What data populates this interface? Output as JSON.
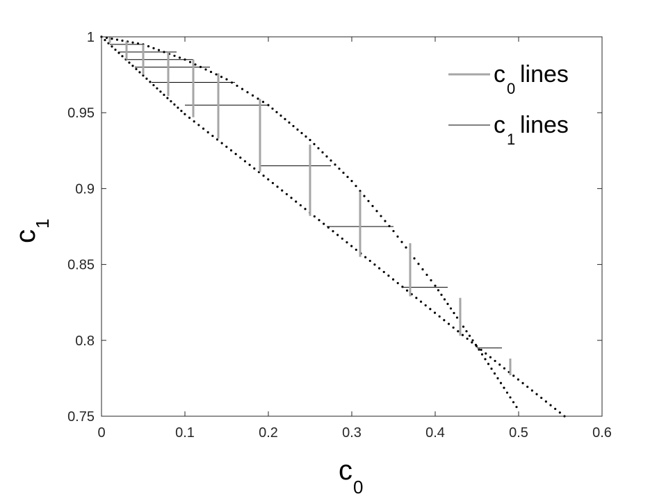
{
  "chart_data": {
    "type": "scatter",
    "xlabel": "c",
    "xlabel_sub": "0",
    "ylabel": "c",
    "ylabel_sub": "1",
    "xlim": [
      0,
      0.6
    ],
    "ylim": [
      0.75,
      1
    ],
    "x_ticks": [
      "0",
      "0.1",
      "0.2",
      "0.3",
      "0.4",
      "0.5",
      "0.6"
    ],
    "y_ticks": [
      "0.75",
      "0.8",
      "0.85",
      "0.9",
      "0.95",
      "1"
    ],
    "grid": false,
    "legend_position": "top-right",
    "legend": [
      {
        "prefix": "c",
        "sub": "0",
        "suffix": " lines",
        "color": "#a6a6a6"
      },
      {
        "prefix": "c",
        "sub": "1",
        "suffix": " lines",
        "color": "#000000"
      }
    ],
    "upper_boundary": {
      "x": [
        0,
        0.05,
        0.1,
        0.15,
        0.2,
        0.25,
        0.3,
        0.35,
        0.4,
        0.45,
        0.5
      ],
      "y": [
        1,
        0.995,
        0.985,
        0.972,
        0.955,
        0.932,
        0.905,
        0.872,
        0.836,
        0.796,
        0.754
      ],
      "color": "#000000"
    },
    "lower_boundary": {
      "x": [
        0,
        0.1,
        0.2,
        0.3,
        0.4,
        0.5,
        0.555
      ],
      "y": [
        1,
        0.949,
        0.906,
        0.862,
        0.818,
        0.774,
        0.75
      ],
      "color": "#000000"
    },
    "c0_lines": [
      {
        "x": 0.01,
        "y1": 0.996,
        "y2": 1.0
      },
      {
        "x": 0.03,
        "y1": 0.985,
        "y2": 0.997
      },
      {
        "x": 0.05,
        "y1": 0.975,
        "y2": 0.995
      },
      {
        "x": 0.08,
        "y1": 0.961,
        "y2": 0.99
      },
      {
        "x": 0.11,
        "y1": 0.947,
        "y2": 0.985
      },
      {
        "x": 0.14,
        "y1": 0.933,
        "y2": 0.976
      },
      {
        "x": 0.19,
        "y1": 0.911,
        "y2": 0.959
      },
      {
        "x": 0.25,
        "y1": 0.882,
        "y2": 0.929
      },
      {
        "x": 0.31,
        "y1": 0.855,
        "y2": 0.898
      },
      {
        "x": 0.37,
        "y1": 0.829,
        "y2": 0.864
      },
      {
        "x": 0.43,
        "y1": 0.803,
        "y2": 0.828
      },
      {
        "x": 0.49,
        "y1": 0.777,
        "y2": 0.788
      }
    ],
    "c1_lines": [
      {
        "y": 0.995,
        "x1": 0.01,
        "x2": 0.05
      },
      {
        "y": 0.99,
        "x1": 0.02,
        "x2": 0.09
      },
      {
        "y": 0.985,
        "x1": 0.03,
        "x2": 0.11
      },
      {
        "y": 0.98,
        "x1": 0.04,
        "x2": 0.13
      },
      {
        "y": 0.97,
        "x1": 0.06,
        "x2": 0.16
      },
      {
        "y": 0.955,
        "x1": 0.1,
        "x2": 0.2
      },
      {
        "y": 0.915,
        "x1": 0.19,
        "x2": 0.275
      },
      {
        "y": 0.875,
        "x1": 0.27,
        "x2": 0.35
      },
      {
        "y": 0.835,
        "x1": 0.36,
        "x2": 0.415
      },
      {
        "y": 0.795,
        "x1": 0.45,
        "x2": 0.48
      }
    ],
    "c0_line_color": "#a6a6a6",
    "c1_line_color": "#000000"
  }
}
